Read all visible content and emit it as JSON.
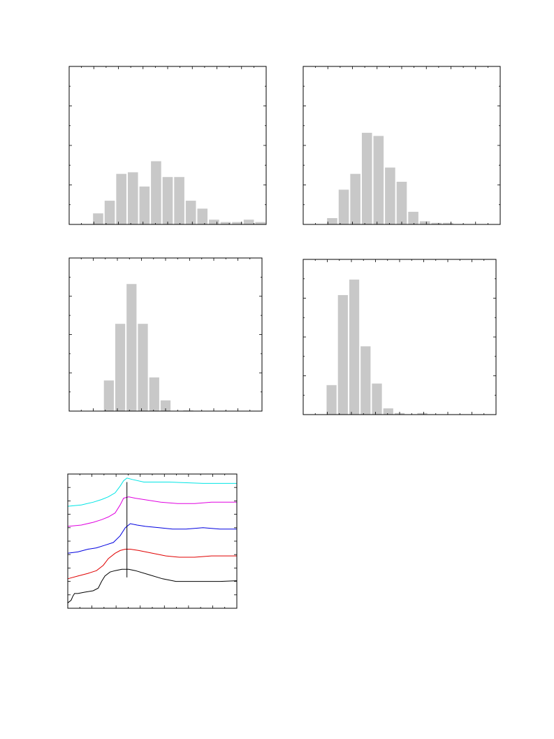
{
  "chart_data": [
    {
      "type": "bar",
      "panel": "top-left",
      "bar_color": "#c8c8c8",
      "ylim": [
        0,
        100
      ],
      "grid": false,
      "values": [
        0,
        0,
        7,
        15,
        32,
        33,
        24,
        40,
        30,
        30,
        15,
        10,
        3,
        1.5,
        1.5,
        3,
        1.5
      ]
    },
    {
      "type": "bar",
      "panel": "top-right",
      "bar_color": "#c8c8c8",
      "ylim": [
        0,
        100
      ],
      "grid": false,
      "values": [
        0,
        0,
        4,
        22,
        32,
        58,
        56,
        36,
        27,
        8,
        2,
        1,
        1,
        0,
        0,
        0,
        0
      ]
    },
    {
      "type": "bar",
      "panel": "middle-left",
      "bar_color": "#c8c8c8",
      "ylim": [
        0,
        100
      ],
      "grid": false,
      "values": [
        0,
        0,
        0,
        20,
        57,
        83,
        57,
        22,
        7,
        0,
        0.5,
        0,
        0,
        0,
        0,
        0,
        0
      ]
    },
    {
      "type": "bar",
      "panel": "middle-right",
      "bar_color": "#c8c8c8",
      "ylim": [
        0,
        100
      ],
      "grid": false,
      "values": [
        0,
        0,
        19,
        77,
        87,
        44,
        20,
        4,
        1,
        0,
        1,
        0,
        0,
        0,
        0,
        0,
        0
      ]
    },
    {
      "type": "line",
      "panel": "bottom-left",
      "xlim": [
        0,
        100
      ],
      "ylim": [
        0,
        100
      ],
      "grid": false,
      "vertical_line_x": 35,
      "series": [
        {
          "color": "#00e5e5",
          "x": [
            0,
            8,
            15,
            20,
            24,
            28,
            31,
            33,
            35,
            38,
            45,
            60,
            80,
            100
          ],
          "y": [
            76,
            77,
            79,
            81,
            83,
            86,
            91,
            95,
            97,
            96,
            94,
            94,
            93,
            93
          ]
        },
        {
          "color": "#e000e0",
          "x": [
            0,
            8,
            15,
            20,
            24,
            28,
            31,
            33,
            36,
            40,
            45,
            55,
            65,
            75,
            85,
            100
          ],
          "y": [
            61,
            62,
            64,
            66,
            68,
            71,
            77,
            82,
            83,
            82,
            81,
            79,
            78,
            78,
            79,
            79
          ]
        },
        {
          "color": "#0000e0",
          "x": [
            0,
            6,
            12,
            17,
            22,
            27,
            31,
            34,
            37,
            41,
            46,
            54,
            62,
            70,
            80,
            90,
            100
          ],
          "y": [
            41,
            42,
            44,
            45,
            47,
            49,
            54,
            60,
            63,
            62,
            61,
            60,
            59,
            59,
            60,
            59,
            59
          ]
        },
        {
          "color": "#e00000",
          "x": [
            0,
            6,
            12,
            17,
            21,
            24,
            28,
            31,
            34,
            37,
            42,
            50,
            58,
            66,
            75,
            85,
            100
          ],
          "y": [
            22,
            24,
            26,
            28,
            32,
            37,
            41,
            43,
            44,
            44,
            43,
            41,
            39,
            38,
            38,
            39,
            39
          ]
        },
        {
          "color": "#000000",
          "x": [
            0,
            2,
            3,
            4,
            6,
            10,
            15,
            18,
            20,
            22,
            25,
            28,
            32,
            36,
            40,
            48,
            56,
            64,
            72,
            80,
            90,
            100
          ],
          "y": [
            4,
            6,
            9,
            11,
            11,
            12,
            13,
            15,
            20,
            24,
            27,
            28,
            29,
            29,
            28,
            25,
            22,
            20,
            20,
            20,
            20,
            20.5
          ]
        }
      ]
    }
  ]
}
